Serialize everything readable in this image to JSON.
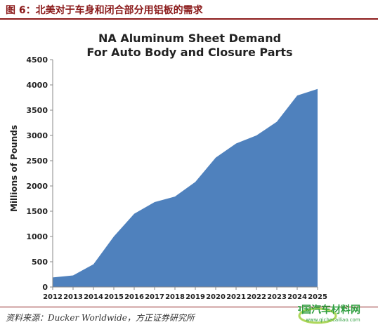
{
  "figure": {
    "caption": "图 6：北美对于车身和闭合部分用铝板的需求",
    "source": "资料来源：Ducker Worldwide，方正证券研究所",
    "watermark": {
      "name": "中国汽车材料网",
      "url": "www.qichecailiao.com"
    }
  },
  "colors": {
    "caption": "#8B1A1A",
    "area": "#4F81BD",
    "watermark": "#2E9E3E"
  },
  "chart_data": {
    "type": "area",
    "title_line1": "NA Aluminum Sheet Demand",
    "title_line2": "For Auto Body and Closure Parts",
    "ylabel": "Millions of Pounds",
    "xlabel": "",
    "ylim": [
      0,
      4500
    ],
    "yticks": [
      0,
      500,
      1000,
      1500,
      2000,
      2500,
      3000,
      3500,
      4000,
      4500
    ],
    "grid": false,
    "legend": "none",
    "x": [
      "2012",
      "2013",
      "2014",
      "2015",
      "2016",
      "2017",
      "2018",
      "2019",
      "2020",
      "2021",
      "2022",
      "2023",
      "2024",
      "2025"
    ],
    "series": [
      {
        "values": [
          190,
          230,
          450,
          1000,
          1450,
          1680,
          1790,
          2080,
          2560,
          2840,
          3000,
          3270,
          3790,
          3920
        ]
      }
    ]
  }
}
